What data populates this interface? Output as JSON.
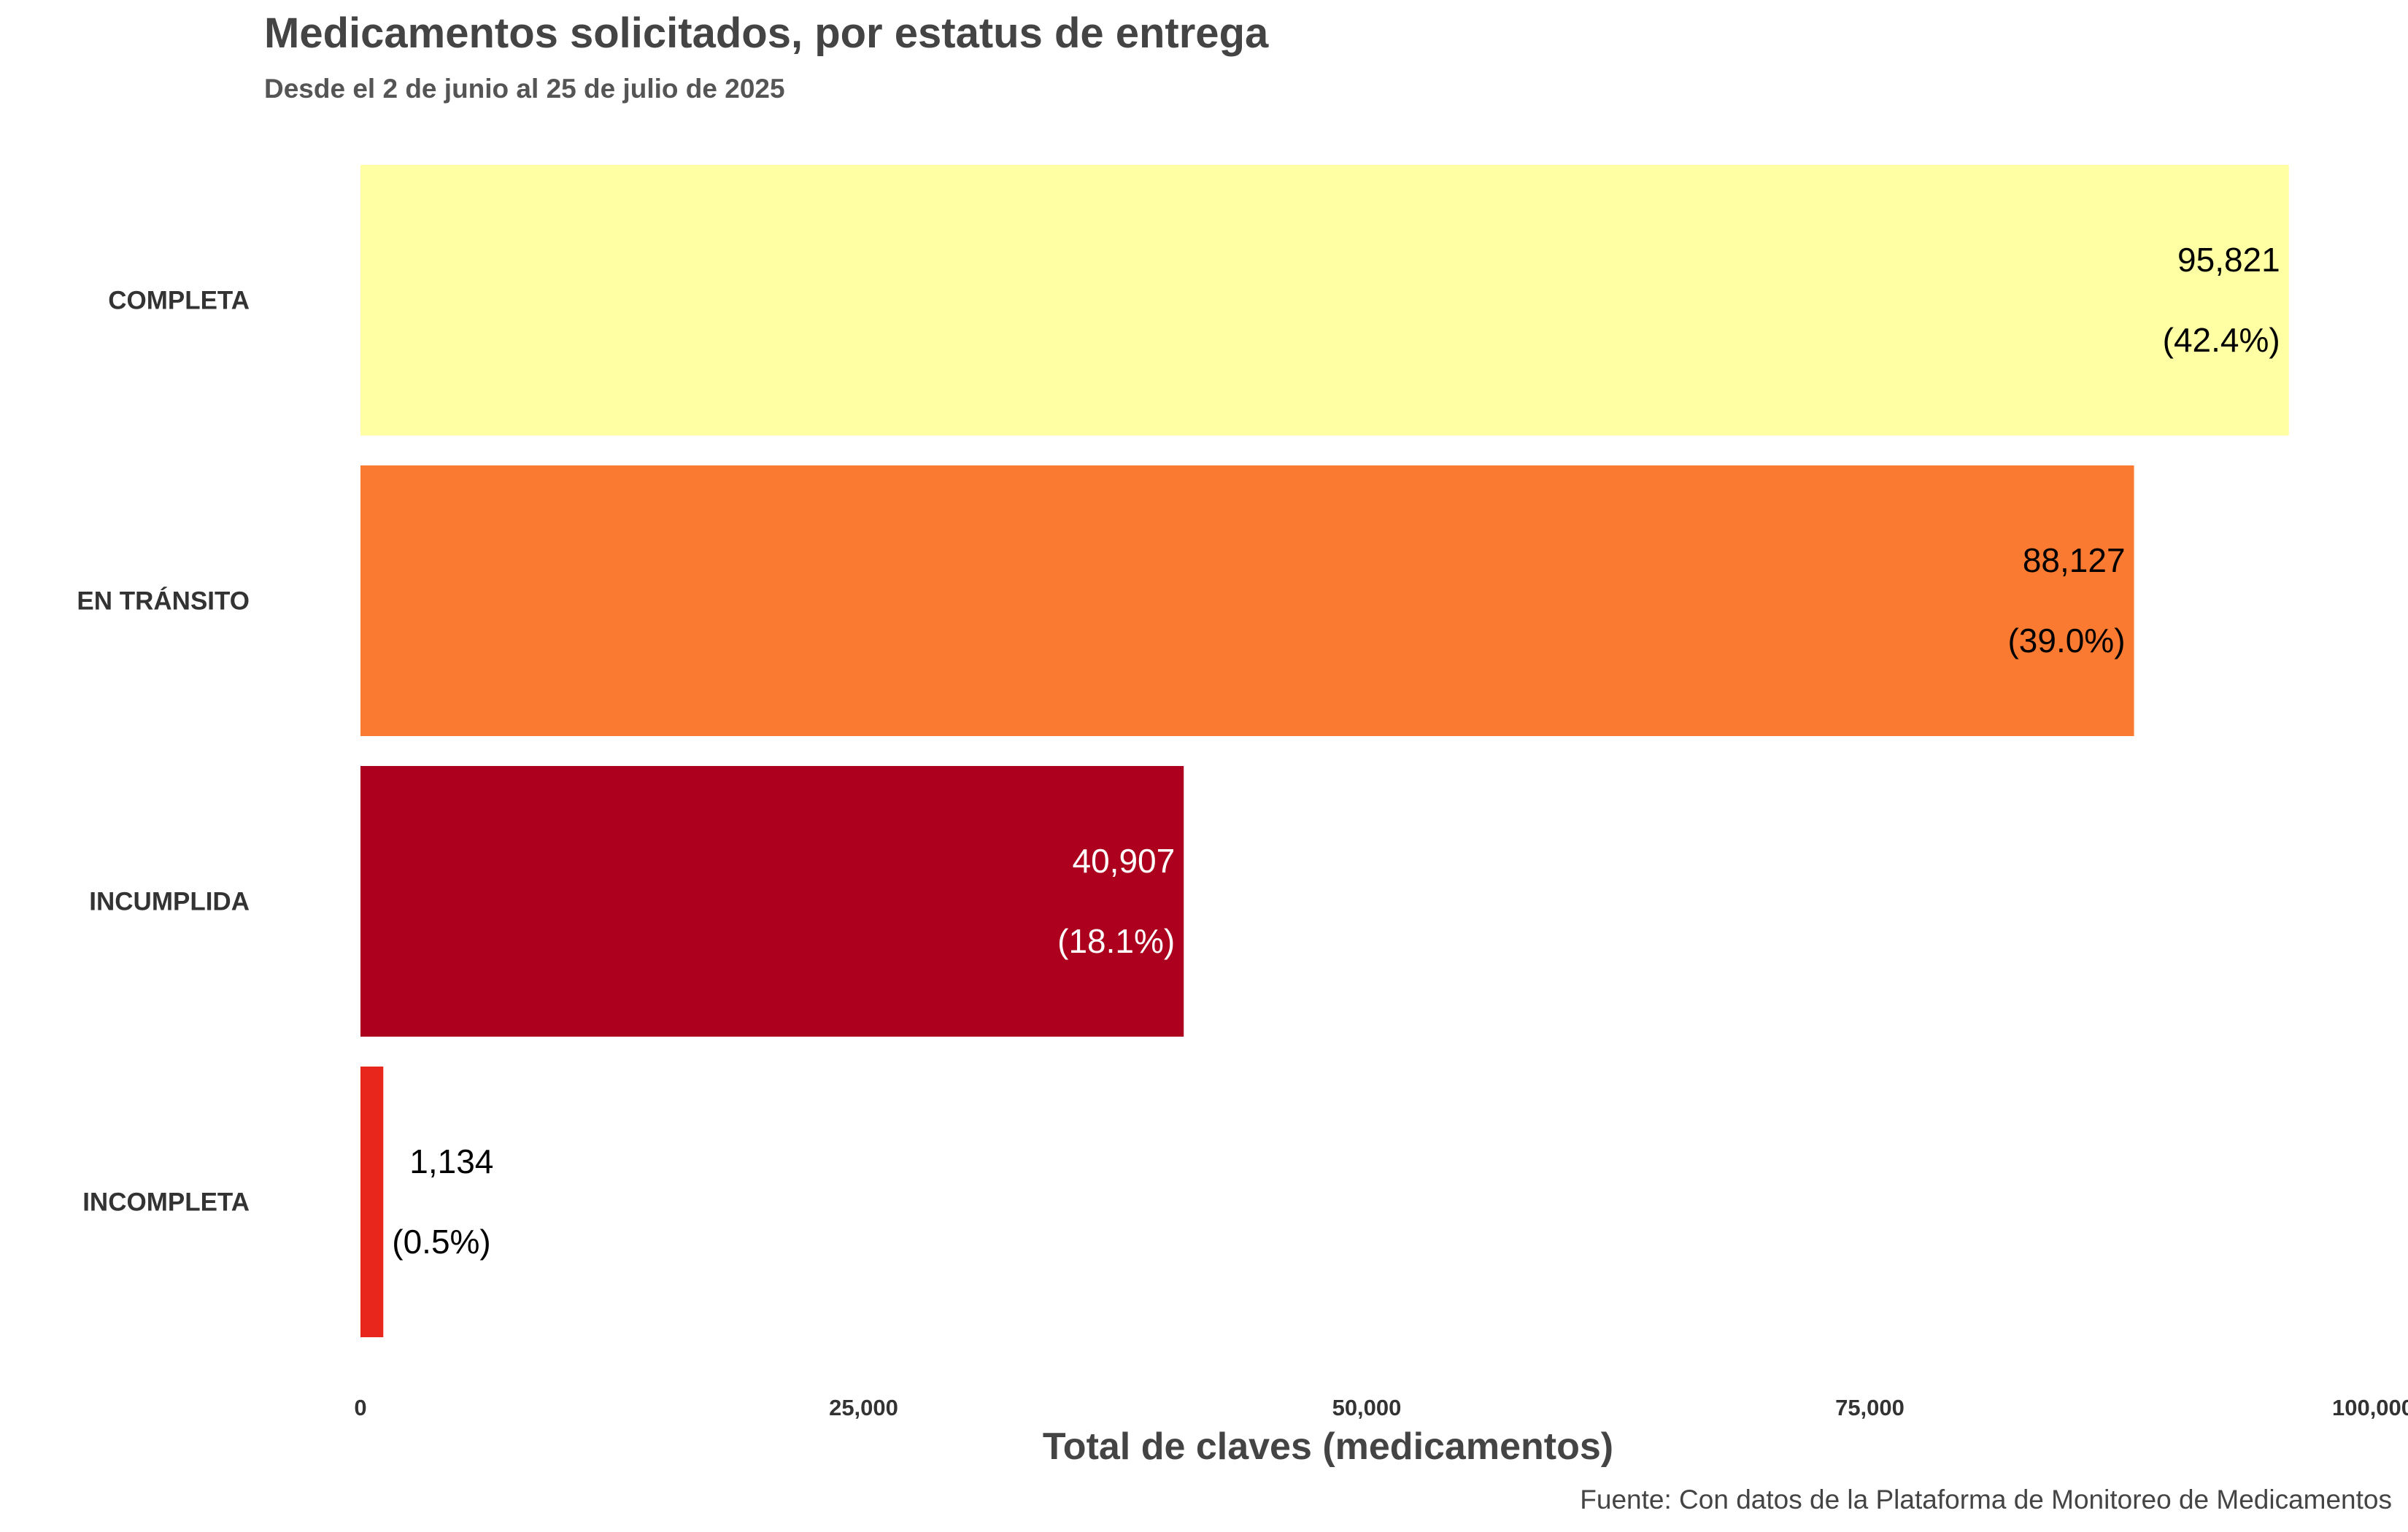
{
  "chart_data": {
    "type": "bar",
    "orientation": "horizontal",
    "title": "Medicamentos solicitados, por estatus de entrega",
    "subtitle": "Desde el 2 de junio al 25 de julio de 2025",
    "xlabel": "Total de claves (medicamentos)",
    "ylabel": "",
    "caption": "Fuente: Con datos de la Plataforma de Monitoreo de Medicamentos",
    "xlim": [
      0,
      100000
    ],
    "x_ticks": [
      0,
      25000,
      50000,
      75000,
      100000
    ],
    "x_tick_labels": [
      "0",
      "25,000",
      "50,000",
      "75,000",
      "100,000"
    ],
    "grid": false,
    "legend": "none",
    "categories": [
      "COMPLETA",
      "EN TRÁNSITO",
      "INCUMPLIDA",
      "INCOMPLETA"
    ],
    "values": [
      95821,
      88127,
      40907,
      1134
    ],
    "value_labels": [
      "95,821",
      "88,127",
      "40,907",
      "1,134"
    ],
    "percent_labels": [
      "(42.4%)",
      "(39.0%)",
      "(18.1%)",
      "(0.5%)"
    ],
    "colors": [
      "#FFFFA3",
      "#F97A30",
      "#AC001E",
      "#E9261C"
    ],
    "label_colors": [
      "#000000",
      "#000000",
      "#FFFFFF",
      "#000000"
    ]
  }
}
